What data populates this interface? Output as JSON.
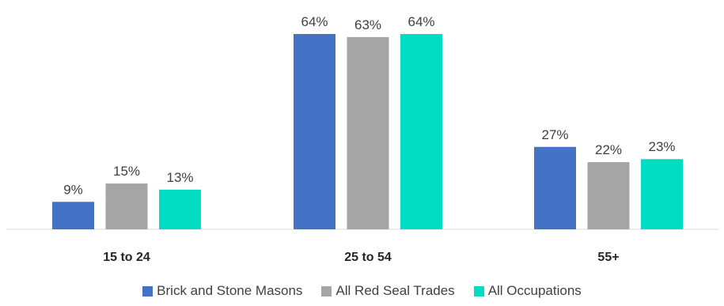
{
  "chart_data": {
    "type": "bar",
    "categories": [
      "15 to 24",
      "25 to 54",
      "55+"
    ],
    "series": [
      {
        "name": "Brick and Stone Masons",
        "values": [
          9,
          64,
          27
        ],
        "labels": [
          "9%",
          "64%",
          "27%"
        ],
        "color": "#4472C4"
      },
      {
        "name": "All Red Seal Trades",
        "values": [
          15,
          63,
          22
        ],
        "labels": [
          "15%",
          "63%",
          "22%"
        ],
        "color": "#A5A5A5"
      },
      {
        "name": "All Occupations",
        "values": [
          13,
          64,
          23
        ],
        "labels": [
          "13%",
          "64%",
          "23%"
        ],
        "color": "#00DDC0"
      }
    ],
    "ylim": [
      0,
      64
    ],
    "grid": false,
    "legend_position": "bottom",
    "title": "",
    "xlabel": "",
    "ylabel": ""
  }
}
